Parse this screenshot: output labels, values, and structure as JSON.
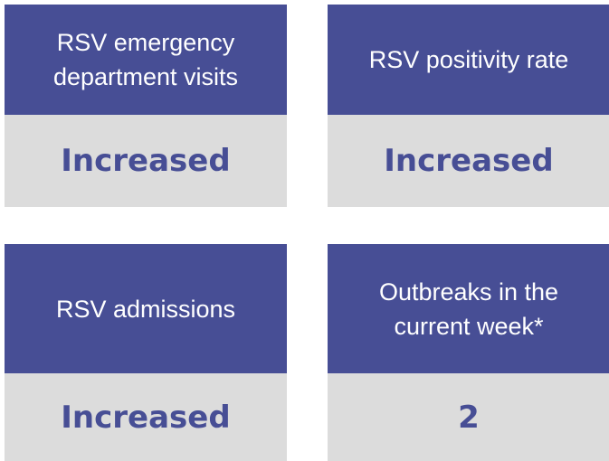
{
  "cards": [
    {
      "label": "RSV emergency department visits",
      "status": "Increased"
    },
    {
      "label": "RSV positivity rate",
      "status": "Increased"
    },
    {
      "label": "RSV admissions",
      "status": "Increased"
    },
    {
      "label": "Outbreaks in the current week*",
      "status": "2"
    }
  ]
}
